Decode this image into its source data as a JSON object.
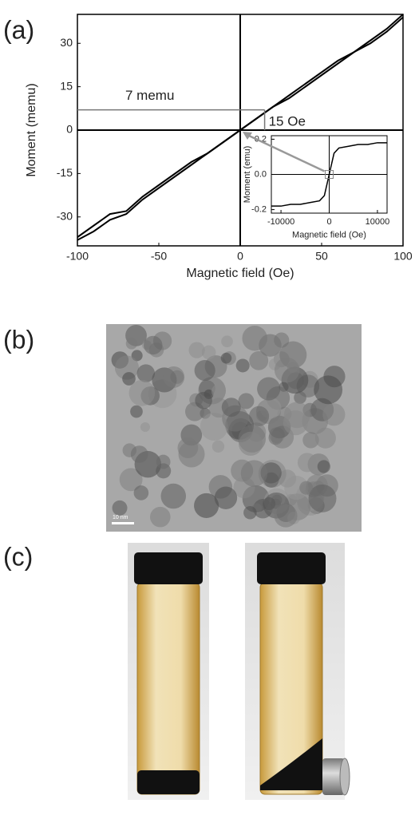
{
  "panel_labels": [
    "(a)",
    "(b)",
    "(c)"
  ],
  "scale_bar": "10 nm",
  "chart_data": [
    {
      "type": "line",
      "x_label": "Magnetic field (Oe)",
      "y_label": "Moment (memu)",
      "x": [
        -100,
        -90,
        -80,
        -70,
        -60,
        -50,
        -40,
        -30,
        -20,
        -10,
        0,
        10,
        20,
        30,
        40,
        50,
        60,
        70,
        80,
        90,
        100
      ],
      "series": [
        {
          "color": "#000000",
          "values": [
            -38,
            -35,
            -31,
            -29,
            -24,
            -20,
            -16,
            -12,
            -8,
            -4,
            0,
            4,
            8,
            12,
            16,
            20,
            24,
            27,
            31,
            35,
            40
          ]
        },
        {
          "color": "#000000",
          "values": [
            -37,
            -33,
            -29,
            -28,
            -23,
            -19,
            -15,
            -11,
            -8,
            -4,
            0,
            4,
            8,
            11,
            15,
            19,
            23,
            27,
            30,
            34,
            39
          ]
        }
      ],
      "xlim": [
        -100,
        100
      ],
      "ylim": [
        -40,
        40
      ],
      "xticks": [
        -100,
        -50,
        0,
        50,
        100
      ],
      "yticks": [
        -30,
        -15,
        0,
        15,
        30
      ],
      "zero_lines": true,
      "annotations": [
        {
          "text": "7 memu",
          "y": 7
        },
        {
          "text": "15 Oe",
          "x": 15
        }
      ]
    },
    {
      "type": "line",
      "x_label": "Magnetic field (Oe)",
      "y_label": "Moment (emu)",
      "x": [
        -12000,
        -10000,
        -8000,
        -6000,
        -4000,
        -2000,
        -1000,
        0,
        1000,
        2000,
        4000,
        6000,
        8000,
        10000,
        12000
      ],
      "series": [
        {
          "color": "#000000",
          "values": [
            -0.18,
            -0.18,
            -0.17,
            -0.17,
            -0.16,
            -0.15,
            -0.12,
            0,
            0.12,
            0.15,
            0.16,
            0.17,
            0.17,
            0.18,
            0.18
          ]
        }
      ],
      "xlim": [
        -12000,
        12000
      ],
      "ylim": [
        -0.22,
        0.22
      ],
      "xticks": [
        -10000,
        0,
        10000
      ],
      "yticks": [
        -0.2,
        {
          "value": 0,
          "label": "0.0"
        },
        0.2
      ],
      "zero_lines": true
    }
  ]
}
